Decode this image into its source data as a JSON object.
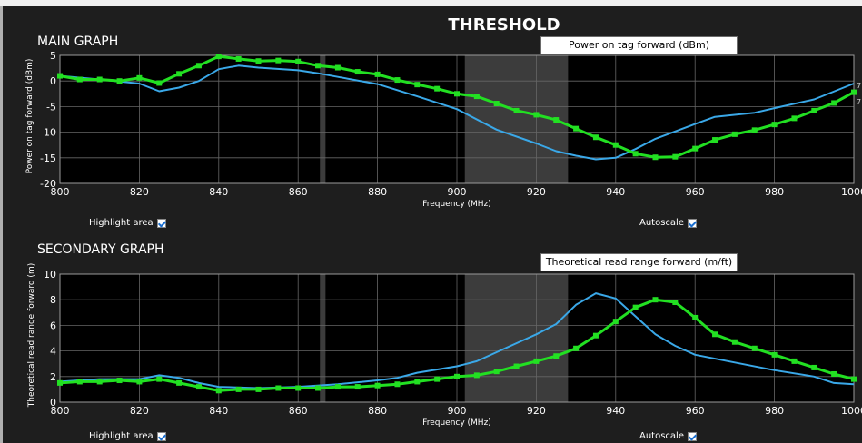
{
  "page_title": "THRESHOLD",
  "main_graph": {
    "title": "MAIN GRAPH",
    "measure_label": "Power on tag forward (dBm)",
    "highlight_label": "Highlight area",
    "autoscale_label": "Autoscale",
    "highlight_checked": true,
    "autoscale_checked": true
  },
  "secondary_graph": {
    "title": "SECONDARY GRAPH",
    "measure_label": "Theoretical read range forward (m/ft)",
    "highlight_label": "Highlight area",
    "autoscale_label": "Autoscale",
    "highlight_checked": true,
    "autoscale_checked": true
  },
  "colors": {
    "green_series": "#22e022",
    "blue_series": "#3aa8e8",
    "plot_bg": "#000000",
    "highlight_band": "#3c3c3c",
    "grid": "#666666"
  },
  "edge_marker": "7",
  "chart_data": [
    {
      "type": "line",
      "xlabel": "Frequency (MHz)",
      "ylabel": "Power on tag forward (dBm)",
      "xlim": [
        800,
        1000
      ],
      "ylim": [
        -20,
        5
      ],
      "xticks": [
        800,
        820,
        840,
        860,
        880,
        900,
        920,
        940,
        960,
        980,
        1000
      ],
      "yticks": [
        -20,
        -15,
        -10,
        -5,
        0,
        5
      ],
      "grid": true,
      "highlight_ranges": [
        [
          865.5,
          866.9
        ],
        [
          902,
          928
        ]
      ],
      "series": [
        {
          "color": "green",
          "markers": true,
          "x": [
            800,
            805,
            810,
            815,
            820,
            825,
            830,
            835,
            840,
            845,
            850,
            855,
            860,
            865,
            870,
            875,
            880,
            885,
            890,
            895,
            900,
            905,
            910,
            915,
            920,
            925,
            930,
            935,
            940,
            945,
            950,
            955,
            960,
            965,
            970,
            975,
            980,
            985,
            990,
            995,
            1000
          ],
          "y": [
            1.0,
            0.3,
            0.3,
            0.0,
            0.6,
            -0.4,
            1.4,
            3.0,
            4.8,
            4.3,
            3.9,
            4.0,
            3.8,
            3.0,
            2.6,
            1.8,
            1.3,
            0.2,
            -0.7,
            -1.5,
            -2.5,
            -3.0,
            -4.4,
            -5.8,
            -6.6,
            -7.6,
            -9.3,
            -11.0,
            -12.5,
            -14.2,
            -14.9,
            -14.8,
            -13.2,
            -11.5,
            -10.4,
            -9.6,
            -8.5,
            -7.3,
            -5.8,
            -4.3,
            -2.2
          ]
        },
        {
          "color": "blue",
          "markers": false,
          "x": [
            800,
            810,
            820,
            825,
            830,
            835,
            840,
            845,
            850,
            860,
            865,
            870,
            880,
            890,
            900,
            910,
            920,
            925,
            930,
            935,
            940,
            945,
            950,
            960,
            965,
            975,
            980,
            990,
            1000
          ],
          "y": [
            1.0,
            0.3,
            -0.5,
            -2.0,
            -1.3,
            0.0,
            2.3,
            3.0,
            2.6,
            2.1,
            1.5,
            0.8,
            -0.6,
            -3.0,
            -5.5,
            -9.5,
            -12.2,
            -13.7,
            -14.6,
            -15.3,
            -15.0,
            -13.3,
            -11.3,
            -8.4,
            -7.0,
            -6.2,
            -5.3,
            -3.6,
            -0.5
          ]
        }
      ]
    },
    {
      "type": "line",
      "xlabel": "Frequency (MHz)",
      "ylabel": "Theoretical read range forward (m)",
      "xlim": [
        800,
        1000
      ],
      "ylim": [
        0,
        10
      ],
      "xticks": [
        800,
        820,
        840,
        860,
        880,
        900,
        920,
        940,
        960,
        980,
        1000
      ],
      "yticks": [
        0,
        2,
        4,
        6,
        8,
        10
      ],
      "grid": true,
      "highlight_ranges": [
        [
          865.5,
          866.9
        ],
        [
          902,
          928
        ]
      ],
      "series": [
        {
          "color": "green",
          "markers": true,
          "x": [
            800,
            805,
            810,
            815,
            820,
            825,
            830,
            835,
            840,
            845,
            850,
            855,
            860,
            865,
            870,
            875,
            880,
            885,
            890,
            895,
            900,
            905,
            910,
            915,
            920,
            925,
            930,
            935,
            940,
            945,
            950,
            955,
            960,
            965,
            970,
            975,
            980,
            985,
            990,
            995,
            1000
          ],
          "y": [
            1.5,
            1.6,
            1.6,
            1.7,
            1.6,
            1.8,
            1.5,
            1.2,
            0.9,
            1.0,
            1.0,
            1.1,
            1.1,
            1.1,
            1.2,
            1.2,
            1.3,
            1.4,
            1.6,
            1.8,
            2.0,
            2.1,
            2.4,
            2.8,
            3.2,
            3.6,
            4.2,
            5.2,
            6.3,
            7.4,
            8.0,
            7.8,
            6.6,
            5.3,
            4.7,
            4.2,
            3.7,
            3.2,
            2.7,
            2.2,
            1.8
          ]
        },
        {
          "color": "blue",
          "markers": false,
          "x": [
            800,
            810,
            820,
            825,
            830,
            835,
            840,
            850,
            860,
            870,
            880,
            885,
            890,
            900,
            905,
            910,
            915,
            920,
            925,
            930,
            935,
            940,
            950,
            955,
            960,
            970,
            980,
            990,
            995,
            1000
          ],
          "y": [
            1.6,
            1.8,
            1.8,
            2.1,
            1.9,
            1.5,
            1.2,
            1.1,
            1.2,
            1.4,
            1.7,
            1.9,
            2.3,
            2.8,
            3.2,
            3.9,
            4.6,
            5.3,
            6.1,
            7.6,
            8.5,
            8.1,
            5.3,
            4.4,
            3.7,
            3.1,
            2.5,
            2.0,
            1.5,
            1.4
          ]
        }
      ]
    }
  ]
}
